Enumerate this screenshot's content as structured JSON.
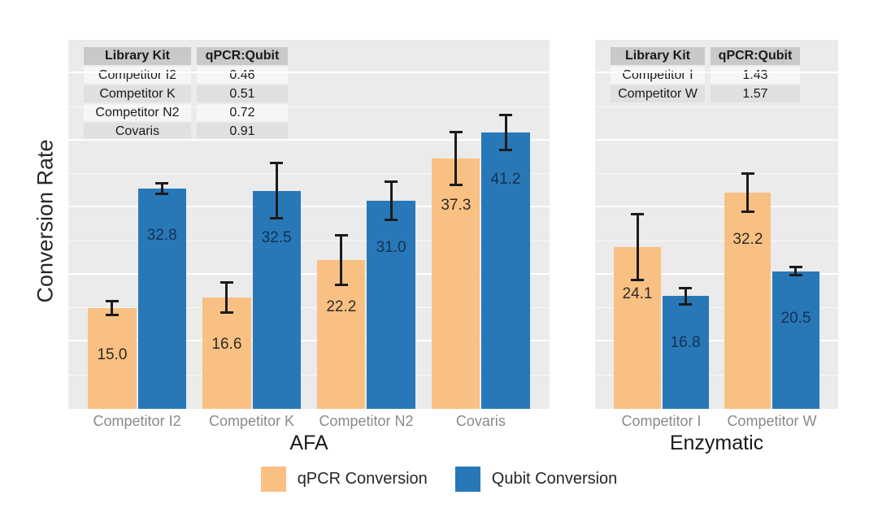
{
  "y_axis": {
    "label": "Conversion Rate"
  },
  "legend": {
    "items": [
      {
        "label": "qPCR Conversion",
        "color": "#F9C083"
      },
      {
        "label": "Qubit Conversion",
        "color": "#2878B8"
      }
    ]
  },
  "chart_data": {
    "type": "bar",
    "title": "",
    "ylabel": "Conversion Rate",
    "xlabel": "",
    "ylim": [
      0,
      55
    ],
    "grid": {
      "minor_step": 5,
      "major_step": 10,
      "color": "#ffffff",
      "panel_background": "#EBEBEB"
    },
    "legend_position": "bottom",
    "series_colors": [
      "#F9C083",
      "#2878B8"
    ],
    "value_label_colors": [
      "#2f2a24",
      "#14314e"
    ],
    "panels": [
      {
        "facet_label": "AFA",
        "categories": [
          "Competitor I2",
          "Competitor K",
          "Competitor N2",
          "Covaris"
        ],
        "series": [
          {
            "name": "qPCR Conversion",
            "values": [
              15.0,
              16.6,
              22.2,
              37.3
            ],
            "labels": [
              "15.0",
              "16.6",
              "22.2",
              "37.3"
            ],
            "errors": [
              1.2,
              2.4,
              3.9,
              4.1
            ]
          },
          {
            "name": "Qubit Conversion",
            "values": [
              32.8,
              32.5,
              31.0,
              41.2
            ],
            "labels": [
              "32.8",
              "32.5",
              "31.0",
              "41.2"
            ],
            "errors": [
              1.0,
              4.3,
              3.0,
              2.8
            ]
          }
        ],
        "inset_table": {
          "headers": [
            "Library Kit",
            "qPCR:Qubit"
          ],
          "rows": [
            [
              "Competitor I2",
              "0.46"
            ],
            [
              "Competitor K",
              "0.51"
            ],
            [
              "Competitor N2",
              "0.72"
            ],
            [
              "Covaris",
              "0.91"
            ]
          ]
        }
      },
      {
        "facet_label": "Enzymatic",
        "categories": [
          "Competitor I",
          "Competitor W"
        ],
        "series": [
          {
            "name": "qPCR Conversion",
            "values": [
              24.1,
              32.2
            ],
            "labels": [
              "24.1",
              "32.2"
            ],
            "errors": [
              5.1,
              3.0
            ]
          },
          {
            "name": "Qubit Conversion",
            "values": [
              16.8,
              20.5
            ],
            "labels": [
              "16.8",
              "20.5"
            ],
            "errors": [
              1.4,
              0.8
            ]
          }
        ],
        "inset_table": {
          "headers": [
            "Library Kit",
            "qPCR:Qubit"
          ],
          "rows": [
            [
              "Competitor I",
              "1.43"
            ],
            [
              "Competitor W",
              "1.57"
            ]
          ]
        }
      }
    ]
  }
}
